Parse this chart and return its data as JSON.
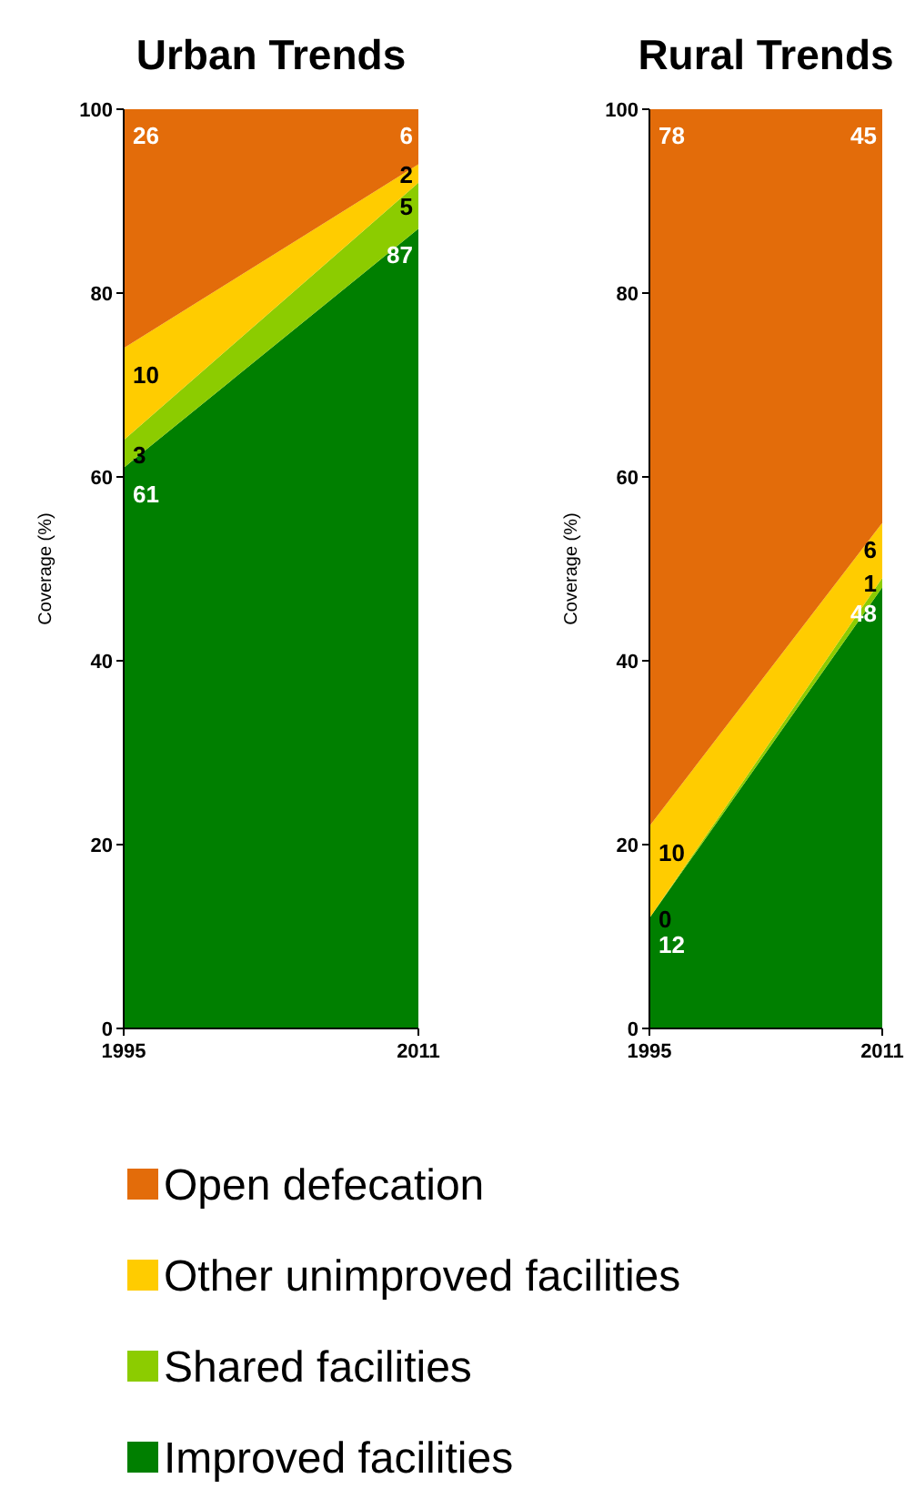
{
  "chart_data": [
    {
      "type": "area",
      "stacked": true,
      "title": "Urban Trends",
      "ylabel": "Coverage (%)",
      "categories": [
        "1995",
        "2011"
      ],
      "ylim": [
        0,
        100
      ],
      "yticks": [
        0,
        20,
        40,
        60,
        80,
        100
      ],
      "legend": "bottom",
      "series": [
        {
          "name": "Improved facilities",
          "color": "#007f00",
          "values": [
            61,
            87
          ],
          "value_labels": [
            "61",
            "87"
          ]
        },
        {
          "name": "Shared facilities",
          "color": "#8ccc00",
          "values": [
            3,
            5
          ],
          "value_labels": [
            "3",
            "5"
          ]
        },
        {
          "name": "Other unimproved facilities",
          "color": "#ffcc00",
          "values": [
            10,
            2
          ],
          "value_labels": [
            "10",
            "2"
          ]
        },
        {
          "name": "Open defecation",
          "color": "#e36c0a",
          "values": [
            26,
            6
          ],
          "value_labels": [
            "26",
            "6"
          ]
        }
      ]
    },
    {
      "type": "area",
      "stacked": true,
      "title": "Rural Trends",
      "ylabel": "Coverage (%)",
      "categories": [
        "1995",
        "2011"
      ],
      "ylim": [
        0,
        100
      ],
      "yticks": [
        0,
        20,
        40,
        60,
        80,
        100
      ],
      "series": [
        {
          "color": "#007f00",
          "values": [
            12,
            48
          ],
          "value_labels": [
            "12",
            "48"
          ]
        },
        {
          "color": "#8ccc00",
          "values": [
            0,
            1
          ],
          "value_labels": [
            "0",
            "1"
          ]
        },
        {
          "color": "#ffcc00",
          "values": [
            10,
            6
          ],
          "value_labels": [
            "10",
            "6"
          ]
        },
        {
          "color": "#e36c0a",
          "values": [
            78,
            45
          ],
          "value_labels": [
            "78",
            "45"
          ]
        }
      ]
    }
  ]
}
